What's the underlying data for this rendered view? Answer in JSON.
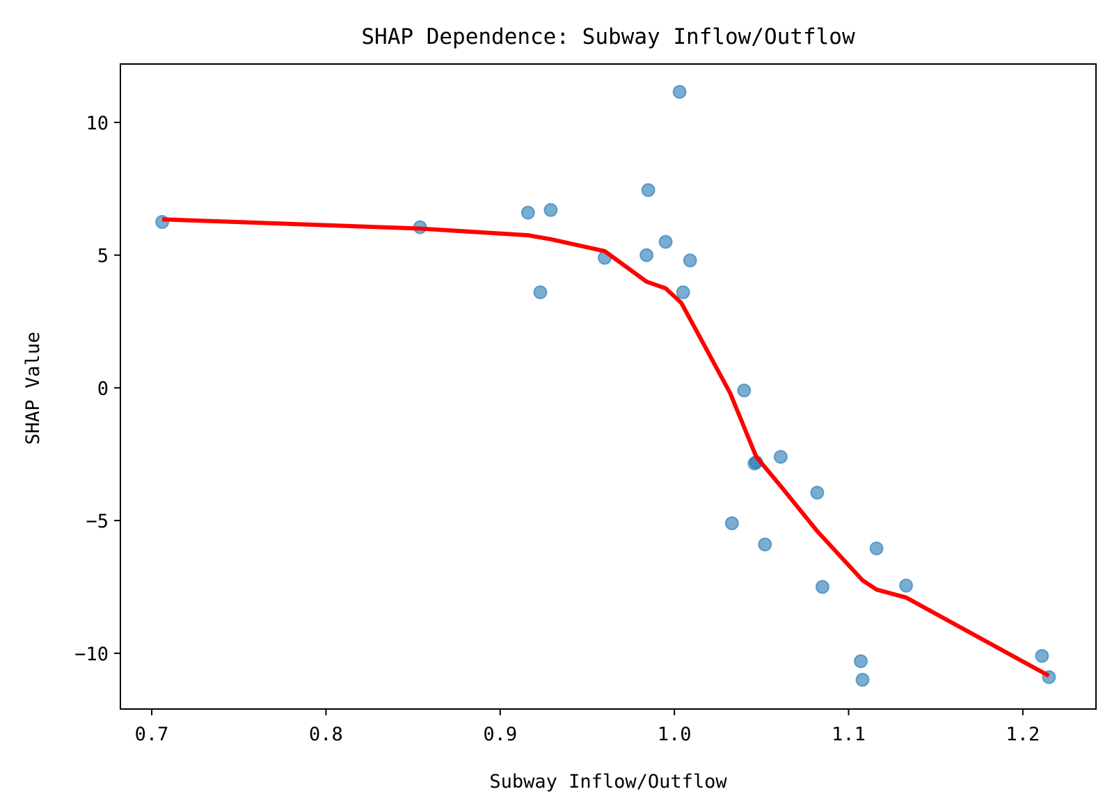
{
  "chart_data": {
    "type": "scatter",
    "title": "SHAP Dependence: Subway Inflow/Outflow",
    "xlabel": "Subway Inflow/Outflow",
    "ylabel": "SHAP Value",
    "xlim": [
      0.682,
      1.242
    ],
    "ylim": [
      -12.1,
      12.2
    ],
    "xticks": [
      {
        "value": 0.7,
        "label": "0.7"
      },
      {
        "value": 0.8,
        "label": "0.8"
      },
      {
        "value": 0.9,
        "label": "0.9"
      },
      {
        "value": 1.0,
        "label": "1.0"
      },
      {
        "value": 1.1,
        "label": "1.1"
      },
      {
        "value": 1.2,
        "label": "1.2"
      }
    ],
    "yticks": [
      {
        "value": 10,
        "label": "10"
      },
      {
        "value": 5,
        "label": "5"
      },
      {
        "value": 0,
        "label": "0"
      },
      {
        "value": -5,
        "label": "−5"
      },
      {
        "value": -10,
        "label": "−10"
      }
    ],
    "grid": false,
    "legend": "none",
    "series": [
      {
        "type": "scatter",
        "color": "#1f77b4",
        "opacity": 0.6,
        "points": [
          {
            "x": 0.706,
            "y": 6.25
          },
          {
            "x": 0.854,
            "y": 6.05
          },
          {
            "x": 0.916,
            "y": 6.6
          },
          {
            "x": 0.929,
            "y": 6.7
          },
          {
            "x": 0.923,
            "y": 3.6
          },
          {
            "x": 0.96,
            "y": 4.9
          },
          {
            "x": 0.984,
            "y": 5.0
          },
          {
            "x": 0.985,
            "y": 7.45
          },
          {
            "x": 0.995,
            "y": 5.5
          },
          {
            "x": 1.003,
            "y": 11.15
          },
          {
            "x": 1.005,
            "y": 3.6
          },
          {
            "x": 1.009,
            "y": 4.8
          },
          {
            "x": 1.033,
            "y": -5.1
          },
          {
            "x": 1.04,
            "y": -0.1
          },
          {
            "x": 1.046,
            "y": -2.85
          },
          {
            "x": 1.047,
            "y": -2.8
          },
          {
            "x": 1.052,
            "y": -5.9
          },
          {
            "x": 1.061,
            "y": -2.6
          },
          {
            "x": 1.082,
            "y": -3.95
          },
          {
            "x": 1.085,
            "y": -7.5
          },
          {
            "x": 1.107,
            "y": -10.3
          },
          {
            "x": 1.108,
            "y": -11.0
          },
          {
            "x": 1.116,
            "y": -6.05
          },
          {
            "x": 1.133,
            "y": -7.45
          },
          {
            "x": 1.211,
            "y": -10.1
          },
          {
            "x": 1.215,
            "y": -10.9
          }
        ]
      },
      {
        "type": "line",
        "color": "#ff0000",
        "points": [
          {
            "x": 0.706,
            "y": 6.35
          },
          {
            "x": 0.854,
            "y": 6.0
          },
          {
            "x": 0.916,
            "y": 5.75
          },
          {
            "x": 0.929,
            "y": 5.6
          },
          {
            "x": 0.96,
            "y": 5.15
          },
          {
            "x": 0.984,
            "y": 4.0
          },
          {
            "x": 0.995,
            "y": 3.75
          },
          {
            "x": 1.004,
            "y": 3.2
          },
          {
            "x": 1.032,
            "y": -0.2
          },
          {
            "x": 1.047,
            "y": -2.6
          },
          {
            "x": 1.061,
            "y": -3.7
          },
          {
            "x": 1.082,
            "y": -5.4
          },
          {
            "x": 1.108,
            "y": -7.25
          },
          {
            "x": 1.116,
            "y": -7.6
          },
          {
            "x": 1.133,
            "y": -7.9
          },
          {
            "x": 1.215,
            "y": -10.85
          }
        ]
      }
    ]
  }
}
